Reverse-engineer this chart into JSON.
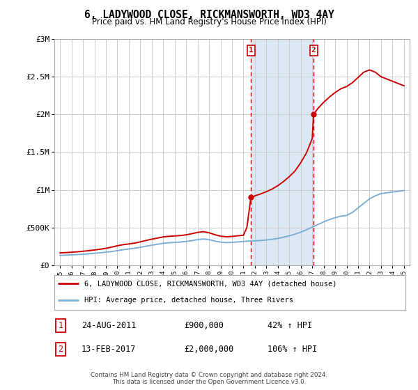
{
  "title": "6, LADYWOOD CLOSE, RICKMANSWORTH, WD3 4AY",
  "subtitle": "Price paid vs. HM Land Registry's House Price Index (HPI)",
  "hpi_label": "HPI: Average price, detached house, Three Rivers",
  "property_label": "6, LADYWOOD CLOSE, RICKMANSWORTH, WD3 4AY (detached house)",
  "sale1_label": "1",
  "sale1_date": "24-AUG-2011",
  "sale1_price": "£900,000",
  "sale1_hpi": "42% ↑ HPI",
  "sale2_label": "2",
  "sale2_date": "13-FEB-2017",
  "sale2_price": "£2,000,000",
  "sale2_hpi": "106% ↑ HPI",
  "footnote": "Contains HM Land Registry data © Crown copyright and database right 2024.\nThis data is licensed under the Open Government Licence v3.0.",
  "property_color": "#cc0000",
  "hpi_color": "#7bafd4",
  "highlight_fill": "#dce9f5",
  "vline_color": "#cc0000",
  "ylim": [
    0,
    3000000
  ],
  "xlim_start": 1994.5,
  "xlim_end": 2025.5,
  "sale1_x": 2011.65,
  "sale1_y": 900000,
  "sale2_x": 2017.12,
  "sale2_y": 2000000,
  "years": [
    1995.0,
    1995.5,
    1996.0,
    1996.5,
    1997.0,
    1997.5,
    1998.0,
    1998.5,
    1999.0,
    1999.5,
    2000.0,
    2000.5,
    2001.0,
    2001.5,
    2002.0,
    2002.5,
    2003.0,
    2003.5,
    2004.0,
    2004.5,
    2005.0,
    2005.5,
    2006.0,
    2006.5,
    2007.0,
    2007.5,
    2008.0,
    2008.5,
    2009.0,
    2009.5,
    2010.0,
    2010.5,
    2011.0,
    2011.5,
    2012.0,
    2012.5,
    2013.0,
    2013.5,
    2014.0,
    2014.5,
    2015.0,
    2015.5,
    2016.0,
    2016.5,
    2017.0,
    2017.5,
    2018.0,
    2018.5,
    2019.0,
    2019.5,
    2020.0,
    2020.5,
    2021.0,
    2021.5,
    2022.0,
    2022.5,
    2023.0,
    2023.5,
    2024.0,
    2024.5,
    2025.0
  ],
  "hpi_values": [
    130000,
    133000,
    137000,
    141000,
    146000,
    151000,
    158000,
    165000,
    173000,
    181000,
    193000,
    205000,
    215000,
    225000,
    237000,
    252000,
    265000,
    278000,
    290000,
    298000,
    303000,
    307000,
    315000,
    325000,
    340000,
    348000,
    340000,
    320000,
    306000,
    300000,
    303000,
    308000,
    315000,
    320000,
    323000,
    328000,
    335000,
    343000,
    355000,
    372000,
    390000,
    412000,
    438000,
    470000,
    505000,
    540000,
    575000,
    605000,
    630000,
    650000,
    660000,
    700000,
    760000,
    820000,
    880000,
    920000,
    950000,
    960000,
    970000,
    980000,
    990000
  ],
  "prop_x": [
    1995.0,
    1995.5,
    1996.0,
    1996.5,
    1997.0,
    1997.5,
    1998.0,
    1998.5,
    1999.0,
    1999.5,
    2000.0,
    2000.5,
    2001.0,
    2001.5,
    2002.0,
    2002.5,
    2003.0,
    2003.5,
    2004.0,
    2004.5,
    2005.0,
    2005.5,
    2006.0,
    2006.5,
    2007.0,
    2007.5,
    2008.0,
    2008.5,
    2009.0,
    2009.5,
    2010.0,
    2010.5,
    2011.0,
    2011.3,
    2011.65,
    2011.9,
    2012.0,
    2012.5,
    2013.0,
    2013.5,
    2014.0,
    2014.5,
    2015.0,
    2015.5,
    2016.0,
    2016.5,
    2017.0,
    2017.12,
    2017.5,
    2018.0,
    2018.5,
    2019.0,
    2019.5,
    2020.0,
    2020.5,
    2021.0,
    2021.5,
    2022.0,
    2022.5,
    2023.0,
    2023.5,
    2024.0,
    2024.5,
    2025.0
  ],
  "prop_y": [
    163000,
    167000,
    172000,
    178000,
    185000,
    193000,
    202000,
    212000,
    224000,
    240000,
    258000,
    272000,
    282000,
    293000,
    310000,
    328000,
    345000,
    360000,
    375000,
    383000,
    388000,
    393000,
    403000,
    418000,
    435000,
    445000,
    430000,
    405000,
    385000,
    377000,
    382000,
    390000,
    398000,
    500000,
    900000,
    910000,
    920000,
    945000,
    975000,
    1010000,
    1055000,
    1110000,
    1175000,
    1250000,
    1360000,
    1490000,
    1680000,
    2000000,
    2080000,
    2160000,
    2230000,
    2290000,
    2340000,
    2370000,
    2420000,
    2490000,
    2560000,
    2590000,
    2560000,
    2500000,
    2470000,
    2440000,
    2410000,
    2380000
  ]
}
